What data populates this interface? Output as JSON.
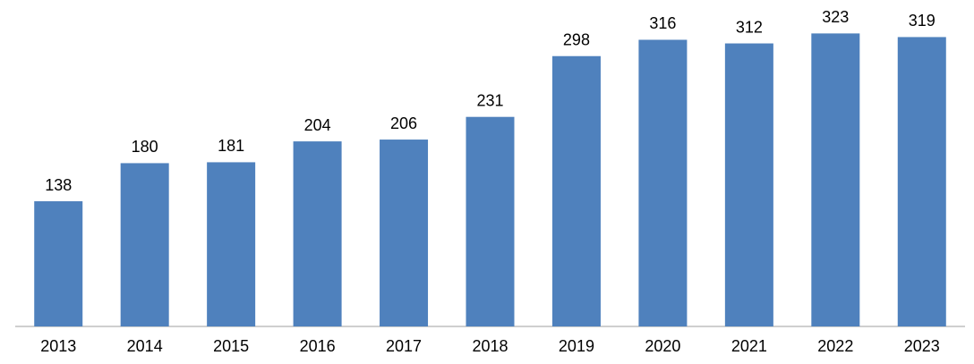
{
  "chart_data": {
    "type": "bar",
    "categories": [
      "2013",
      "2014",
      "2015",
      "2016",
      "2017",
      "2018",
      "2019",
      "2020",
      "2021",
      "2022",
      "2023"
    ],
    "values": [
      138,
      180,
      181,
      204,
      206,
      231,
      298,
      316,
      312,
      323,
      319
    ],
    "color": "#4f81bd",
    "ylim": [
      0,
      350
    ]
  }
}
